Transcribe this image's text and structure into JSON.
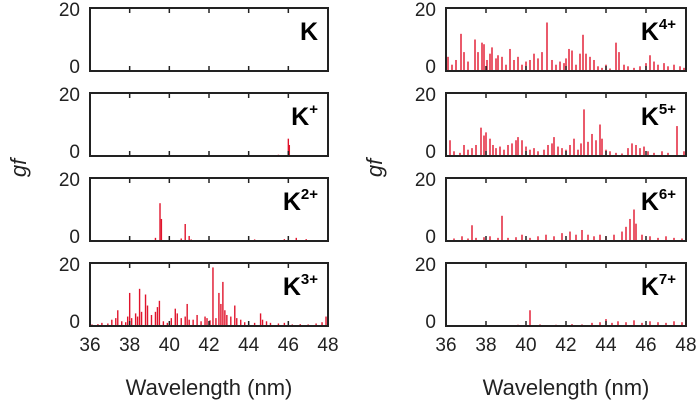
{
  "chart_data": {
    "type": "bar",
    "xlabel": "Wavelength (nm)",
    "ylabel": "gf",
    "xlim": [
      36,
      48
    ],
    "ylim": [
      0,
      20
    ],
    "xticks": [
      36,
      38,
      40,
      42,
      44,
      46,
      48
    ],
    "yticks": [
      0,
      20
    ],
    "line_color": "#e0142c",
    "layout": "4 rows x 2 columns",
    "panels": [
      {
        "ion": "K",
        "charge": "",
        "column": "left",
        "lines": []
      },
      {
        "ion": "K",
        "charge": "+",
        "column": "left",
        "lines": [
          [
            44.8,
            0.3
          ],
          [
            45.5,
            0.4
          ],
          [
            46.0,
            5.5
          ],
          [
            46.05,
            3.5
          ]
        ]
      },
      {
        "ion": "K",
        "charge": "2+",
        "column": "left",
        "lines": [
          [
            39.3,
            1.0
          ],
          [
            39.53,
            12
          ],
          [
            39.6,
            7
          ],
          [
            40.6,
            0.8
          ],
          [
            40.8,
            5.4
          ],
          [
            41.0,
            1.6
          ],
          [
            41.1,
            0.5
          ],
          [
            41.5,
            0.2
          ],
          [
            44.3,
            0.5
          ],
          [
            44.6,
            0.3
          ],
          [
            45.0,
            0.3
          ],
          [
            45.8,
            0.6
          ],
          [
            46.0,
            0.4
          ],
          [
            46.4,
            1.0
          ],
          [
            46.9,
            0.6
          ],
          [
            47.2,
            0.3
          ]
        ]
      },
      {
        "ion": "K",
        "charge": "3+",
        "column": "left",
        "lines": [
          [
            36.1,
            0.5
          ],
          [
            36.4,
            0.6
          ],
          [
            36.6,
            1.0
          ],
          [
            36.9,
            0.8
          ],
          [
            37.1,
            2.0
          ],
          [
            37.3,
            2.5
          ],
          [
            37.4,
            5.0
          ],
          [
            37.6,
            1.5
          ],
          [
            37.8,
            1.2
          ],
          [
            37.9,
            3.0
          ],
          [
            38.0,
            10.5
          ],
          [
            38.1,
            2.5
          ],
          [
            38.3,
            4.0
          ],
          [
            38.4,
            3.0
          ],
          [
            38.5,
            11.8
          ],
          [
            38.6,
            4.5
          ],
          [
            38.8,
            10.0
          ],
          [
            38.9,
            6.5
          ],
          [
            39.1,
            3.5
          ],
          [
            39.3,
            4.5
          ],
          [
            39.4,
            6.0
          ],
          [
            39.5,
            8.0
          ],
          [
            39.7,
            1.5
          ],
          [
            39.9,
            1.0
          ],
          [
            40.1,
            2.5
          ],
          [
            40.3,
            5.5
          ],
          [
            40.4,
            4.0
          ],
          [
            40.6,
            2.5
          ],
          [
            40.8,
            3.0
          ],
          [
            40.9,
            7.0
          ],
          [
            41.0,
            2.0
          ],
          [
            41.2,
            2.0
          ],
          [
            41.4,
            3.5
          ],
          [
            41.6,
            1.5
          ],
          [
            41.8,
            3.0
          ],
          [
            41.9,
            2.5
          ],
          [
            42.05,
            1.8
          ],
          [
            42.2,
            18.6
          ],
          [
            42.35,
            2.5
          ],
          [
            42.5,
            10.5
          ],
          [
            42.6,
            7.0
          ],
          [
            42.7,
            14.0
          ],
          [
            42.8,
            5.0
          ],
          [
            42.9,
            3.5
          ],
          [
            43.1,
            3.0
          ],
          [
            43.3,
            6.5
          ],
          [
            43.4,
            2.5
          ],
          [
            43.6,
            2.0
          ],
          [
            43.8,
            1.2
          ],
          [
            44.0,
            0.8
          ],
          [
            44.3,
            1.0
          ],
          [
            44.6,
            4.0
          ],
          [
            44.7,
            2.0
          ],
          [
            44.9,
            1.5
          ],
          [
            45.1,
            1.0
          ],
          [
            45.5,
            0.8
          ],
          [
            45.8,
            1.0
          ],
          [
            46.2,
            0.5
          ],
          [
            46.6,
            0.6
          ],
          [
            47.0,
            0.5
          ],
          [
            47.4,
            0.8
          ],
          [
            47.7,
            1.2
          ],
          [
            47.9,
            3.0
          ]
        ]
      },
      {
        "ion": "K",
        "charge": "4+",
        "column": "right",
        "lines": [
          [
            36.1,
            4.5
          ],
          [
            36.3,
            2.0
          ],
          [
            36.5,
            3.5
          ],
          [
            36.75,
            11.8
          ],
          [
            36.9,
            6.0
          ],
          [
            37.1,
            3.0
          ],
          [
            37.45,
            10.0
          ],
          [
            37.6,
            6.0
          ],
          [
            37.8,
            9.0
          ],
          [
            37.9,
            8.5
          ],
          [
            38.05,
            3.5
          ],
          [
            38.2,
            5.5
          ],
          [
            38.3,
            7.5
          ],
          [
            38.5,
            4.0
          ],
          [
            38.6,
            5.0
          ],
          [
            38.8,
            4.5
          ],
          [
            39.0,
            2.0
          ],
          [
            39.2,
            7.0
          ],
          [
            39.4,
            3.5
          ],
          [
            39.6,
            4.5
          ],
          [
            39.8,
            2.0
          ],
          [
            40.0,
            3.0
          ],
          [
            40.2,
            3.5
          ],
          [
            40.4,
            5.5
          ],
          [
            40.6,
            4.0
          ],
          [
            40.8,
            6.0
          ],
          [
            41.05,
            15.4
          ],
          [
            41.3,
            3.5
          ],
          [
            41.5,
            2.0
          ],
          [
            41.7,
            3.0
          ],
          [
            41.9,
            2.5
          ],
          [
            42.0,
            4.0
          ],
          [
            42.15,
            7.0
          ],
          [
            42.3,
            6.5
          ],
          [
            42.5,
            2.0
          ],
          [
            42.7,
            5.5
          ],
          [
            42.85,
            11.5
          ],
          [
            43.0,
            5.5
          ],
          [
            43.2,
            4.5
          ],
          [
            43.4,
            3.5
          ],
          [
            43.6,
            1.5
          ],
          [
            43.8,
            1.0
          ],
          [
            44.0,
            2.0
          ],
          [
            44.2,
            0.8
          ],
          [
            44.5,
            9.0
          ],
          [
            44.65,
            6.0
          ],
          [
            44.9,
            2.0
          ],
          [
            45.1,
            1.5
          ],
          [
            45.4,
            1.0
          ],
          [
            45.7,
            1.5
          ],
          [
            46.0,
            2.5
          ],
          [
            46.2,
            5.0
          ],
          [
            46.4,
            3.0
          ],
          [
            46.6,
            2.0
          ],
          [
            46.9,
            2.5
          ],
          [
            47.1,
            1.5
          ],
          [
            47.4,
            2.0
          ],
          [
            47.7,
            1.5
          ],
          [
            47.9,
            1.0
          ]
        ]
      },
      {
        "ion": "K",
        "charge": "5+",
        "column": "right",
        "lines": [
          [
            36.2,
            5.0
          ],
          [
            36.4,
            1.5
          ],
          [
            36.7,
            1.0
          ],
          [
            36.9,
            3.5
          ],
          [
            37.1,
            2.0
          ],
          [
            37.3,
            2.5
          ],
          [
            37.5,
            3.5
          ],
          [
            37.75,
            9.0
          ],
          [
            37.9,
            6.5
          ],
          [
            38.0,
            7.5
          ],
          [
            38.2,
            5.5
          ],
          [
            38.35,
            3.5
          ],
          [
            38.5,
            2.5
          ],
          [
            38.7,
            3.0
          ],
          [
            38.9,
            2.0
          ],
          [
            39.1,
            3.5
          ],
          [
            39.3,
            4.0
          ],
          [
            39.5,
            5.0
          ],
          [
            39.6,
            6.0
          ],
          [
            39.8,
            5.0
          ],
          [
            40.0,
            3.0
          ],
          [
            40.2,
            2.0
          ],
          [
            40.4,
            2.5
          ],
          [
            40.6,
            1.5
          ],
          [
            40.9,
            2.0
          ],
          [
            41.1,
            3.5
          ],
          [
            41.3,
            4.0
          ],
          [
            41.4,
            6.0
          ],
          [
            41.6,
            3.0
          ],
          [
            41.8,
            2.5
          ],
          [
            42.0,
            2.0
          ],
          [
            42.2,
            3.5
          ],
          [
            42.4,
            5.5
          ],
          [
            42.6,
            2.0
          ],
          [
            42.75,
            4.0
          ],
          [
            42.9,
            14.8
          ],
          [
            43.1,
            4.5
          ],
          [
            43.3,
            7.0
          ],
          [
            43.5,
            5.0
          ],
          [
            43.7,
            10.0
          ],
          [
            43.8,
            5.5
          ],
          [
            44.0,
            2.0
          ],
          [
            44.2,
            1.5
          ],
          [
            44.5,
            1.0
          ],
          [
            44.8,
            0.8
          ],
          [
            45.1,
            2.5
          ],
          [
            45.3,
            4.0
          ],
          [
            45.5,
            3.5
          ],
          [
            45.7,
            2.5
          ],
          [
            45.9,
            3.0
          ],
          [
            46.1,
            1.5
          ],
          [
            46.4,
            1.0
          ],
          [
            46.8,
            1.5
          ],
          [
            47.1,
            1.0
          ],
          [
            47.55,
            9.5
          ],
          [
            47.9,
            1.5
          ]
        ]
      },
      {
        "ion": "K",
        "charge": "6+",
        "column": "right",
        "lines": [
          [
            36.4,
            0.8
          ],
          [
            36.8,
            1.5
          ],
          [
            37.1,
            0.8
          ],
          [
            37.3,
            5.0
          ],
          [
            37.5,
            1.0
          ],
          [
            37.9,
            1.2
          ],
          [
            38.2,
            1.5
          ],
          [
            38.6,
            1.0
          ],
          [
            38.8,
            8.0
          ],
          [
            39.1,
            1.0
          ],
          [
            39.5,
            1.2
          ],
          [
            39.8,
            2.0
          ],
          [
            40.2,
            1.0
          ],
          [
            40.6,
            1.5
          ],
          [
            41.0,
            2.0
          ],
          [
            41.4,
            1.5
          ],
          [
            41.8,
            2.5
          ],
          [
            42.2,
            3.0
          ],
          [
            42.5,
            2.0
          ],
          [
            42.8,
            3.5
          ],
          [
            43.1,
            2.0
          ],
          [
            43.4,
            1.5
          ],
          [
            43.7,
            2.0
          ],
          [
            44.0,
            1.5
          ],
          [
            44.4,
            2.0
          ],
          [
            44.8,
            3.0
          ],
          [
            45.0,
            4.5
          ],
          [
            45.2,
            7.0
          ],
          [
            45.4,
            10.0
          ],
          [
            45.5,
            5.5
          ],
          [
            45.8,
            2.0
          ],
          [
            46.2,
            1.5
          ],
          [
            46.6,
            1.0
          ],
          [
            47.0,
            1.5
          ],
          [
            47.4,
            1.0
          ],
          [
            47.8,
            0.8
          ]
        ]
      },
      {
        "ion": "K",
        "charge": "7+",
        "column": "right",
        "lines": [
          [
            38.5,
            0.3
          ],
          [
            39.6,
            0.4
          ],
          [
            40.2,
            5.0
          ],
          [
            40.7,
            0.5
          ],
          [
            41.5,
            0.4
          ],
          [
            42.3,
            0.6
          ],
          [
            42.8,
            0.5
          ],
          [
            43.3,
            1.0
          ],
          [
            43.7,
            1.2
          ],
          [
            44.0,
            2.2
          ],
          [
            44.3,
            1.0
          ],
          [
            44.6,
            1.5
          ],
          [
            45.0,
            1.2
          ],
          [
            45.4,
            1.8
          ],
          [
            45.8,
            1.0
          ],
          [
            46.2,
            1.5
          ],
          [
            46.6,
            1.2
          ],
          [
            47.0,
            1.0
          ],
          [
            47.4,
            1.5
          ],
          [
            47.8,
            1.2
          ]
        ]
      }
    ]
  }
}
